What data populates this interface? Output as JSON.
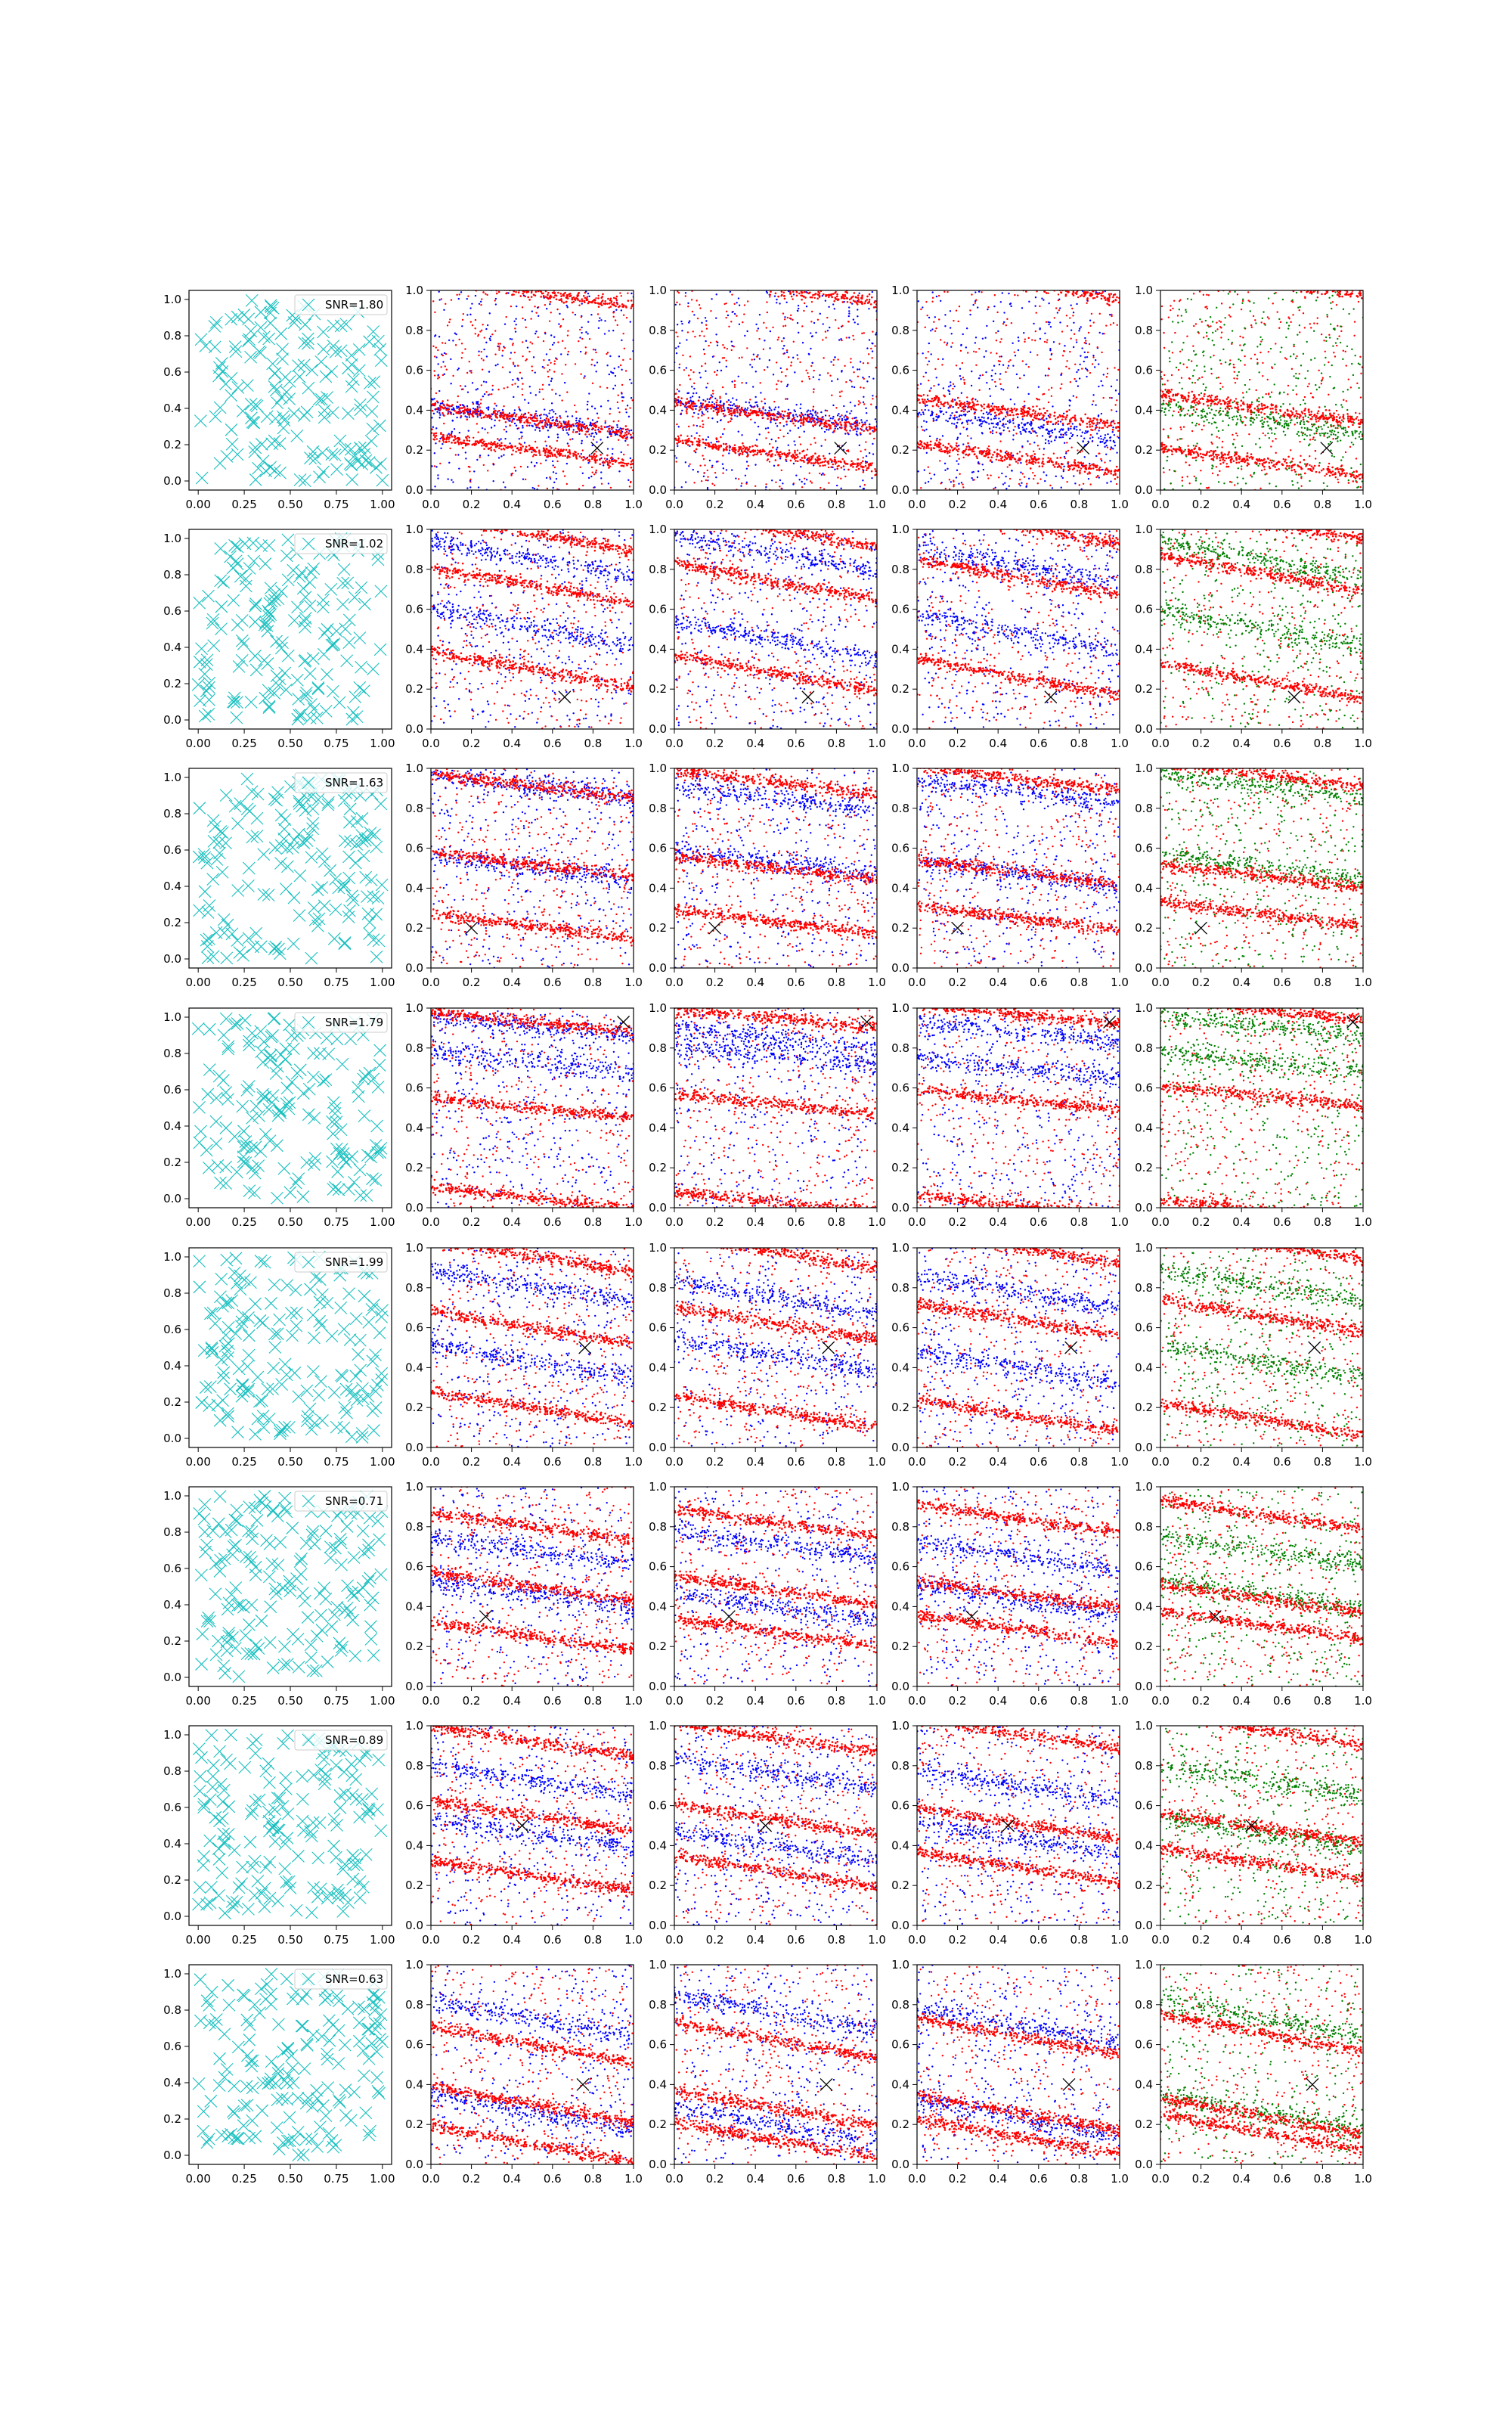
{
  "figure": {
    "rows": 8,
    "cols": 5,
    "axis_ticks_left": [
      "0.00",
      "0.25",
      "0.50",
      "0.75",
      "1.00"
    ],
    "axis_ticks_other": [
      "0.0",
      "0.2",
      "0.4",
      "0.6",
      "0.8",
      "1.0"
    ],
    "y_ticks": [
      "0.0",
      "0.2",
      "0.4",
      "0.6",
      "0.8",
      "1.0"
    ],
    "colors": {
      "cyan_marker": "#17bfbf",
      "red": "#ff0000",
      "blue": "#0000ff",
      "green": "#008000",
      "black_marker": "#000000"
    }
  },
  "chart_data": [
    {
      "row": 1,
      "type": "scatter",
      "legend": "SNR=1.80",
      "marker_xy": [
        0.82,
        0.21
      ],
      "band_slope": -0.14,
      "red_bands": [
        0.35,
        0.2,
        0.99
      ],
      "blue_bands": [
        0.32
      ],
      "green_last": true,
      "xlim": [
        0,
        1
      ],
      "ylim": [
        0,
        1
      ]
    },
    {
      "row": 2,
      "type": "scatter",
      "legend": "SNR=1.02",
      "marker_xy": [
        0.66,
        0.16
      ],
      "band_slope": -0.18,
      "red_bands": [
        0.72,
        0.3,
        0.98
      ],
      "blue_bands": [
        0.82,
        0.45
      ],
      "green_last": true,
      "xlim": [
        0,
        1
      ],
      "ylim": [
        0,
        1
      ]
    },
    {
      "row": 3,
      "type": "scatter",
      "legend": "SNR=1.63",
      "marker_xy": [
        0.2,
        0.2
      ],
      "band_slope": -0.12,
      "red_bands": [
        0.21,
        0.52,
        0.91
      ],
      "blue_bands": [
        0.47,
        0.85
      ],
      "green_last": true,
      "xlim": [
        0,
        1
      ],
      "ylim": [
        0,
        1
      ]
    },
    {
      "row": 4,
      "type": "scatter",
      "legend": "SNR=1.79",
      "marker_xy": [
        0.95,
        0.93
      ],
      "band_slope": -0.1,
      "red_bands": [
        0.93,
        0.05,
        0.5
      ],
      "blue_bands": [
        0.7,
        0.85
      ],
      "green_last": true,
      "xlim": [
        0,
        1
      ],
      "ylim": [
        0,
        1
      ]
    },
    {
      "row": 5,
      "type": "scatter",
      "legend": "SNR=1.99",
      "marker_xy": [
        0.76,
        0.5
      ],
      "band_slope": -0.16,
      "red_bands": [
        0.6,
        0.2,
        0.96
      ],
      "blue_bands": [
        0.4,
        0.75
      ],
      "green_last": true,
      "xlim": [
        0,
        1
      ],
      "ylim": [
        0,
        1
      ]
    },
    {
      "row": 6,
      "type": "scatter",
      "legend": "SNR=0.71",
      "marker_xy": [
        0.27,
        0.35
      ],
      "band_slope": -0.14,
      "red_bands": [
        0.8,
        0.5,
        0.25
      ],
      "blue_bands": [
        0.65,
        0.4
      ],
      "green_last": true,
      "xlim": [
        0,
        1
      ],
      "ylim": [
        0,
        1
      ]
    },
    {
      "row": 7,
      "type": "scatter",
      "legend": "SNR=0.89",
      "marker_xy": [
        0.45,
        0.5
      ],
      "band_slope": -0.15,
      "red_bands": [
        0.92,
        0.55,
        0.25
      ],
      "blue_bands": [
        0.7,
        0.4
      ],
      "green_last": true,
      "xlim": [
        0,
        1
      ],
      "ylim": [
        0,
        1
      ]
    },
    {
      "row": 8,
      "type": "scatter",
      "legend": "SNR=0.63",
      "marker_xy": [
        0.75,
        0.4
      ],
      "band_slope": -0.18,
      "red_bands": [
        0.6,
        0.3,
        0.1
      ],
      "blue_bands": [
        0.7,
        0.2
      ],
      "green_last": true,
      "xlim": [
        0,
        1
      ],
      "ylim": [
        0,
        1
      ]
    }
  ]
}
